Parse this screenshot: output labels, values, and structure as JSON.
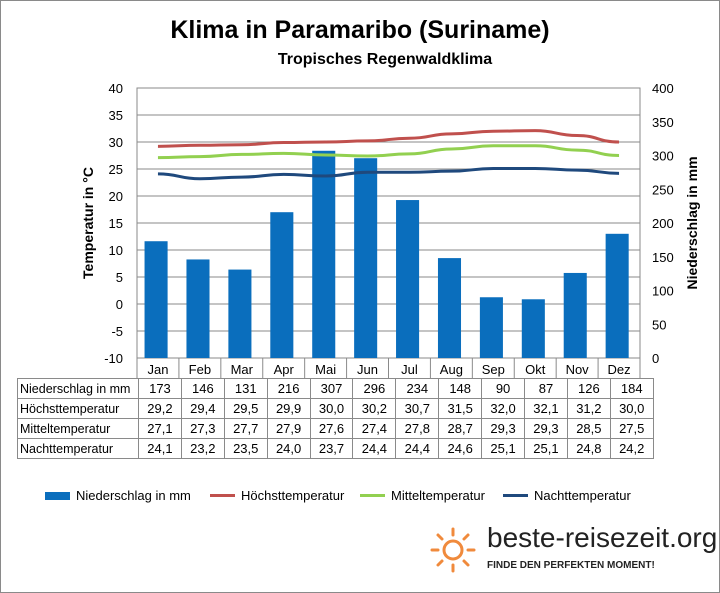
{
  "title": "Klima in Paramaribo (Suriname)",
  "subtitle": "Tropisches Regenwaldklima",
  "logo": {
    "text": "beste-reisezeit.org",
    "tagline": "FINDE DEN PERFEKTEN MOMENT!"
  },
  "chart_data": {
    "type": "bar+line",
    "title": "Klima in Paramaribo (Suriname)",
    "subtitle": "Tropisches Regenwaldklima",
    "ylabel": "Temperatur in °C",
    "y2label": "Niederschlag in mm",
    "ylim": [
      -10,
      40
    ],
    "y2lim": [
      0,
      400
    ],
    "yticks": [
      -10,
      -5,
      0,
      5,
      10,
      15,
      20,
      25,
      30,
      35,
      40
    ],
    "y2ticks": [
      0,
      50,
      100,
      150,
      200,
      250,
      300,
      350,
      400
    ],
    "grid": true,
    "legend_position": "bottom",
    "categories": [
      "Jan",
      "Feb",
      "Mar",
      "Apr",
      "Mai",
      "Jun",
      "Jul",
      "Aug",
      "Sep",
      "Okt",
      "Nov",
      "Dez"
    ],
    "series": [
      {
        "name": "Niederschlag in mm",
        "type": "bar",
        "axis": "right",
        "color": "#0a6ebd",
        "values": [
          173,
          146,
          131,
          216,
          307,
          296,
          234,
          148,
          90,
          87,
          126,
          184
        ],
        "display": [
          "173",
          "146",
          "131",
          "216",
          "307",
          "296",
          "234",
          "148",
          "90",
          "87",
          "126",
          "184"
        ]
      },
      {
        "name": "Höchsttemperatur",
        "type": "line",
        "axis": "left",
        "color": "#c0504d",
        "values": [
          29.2,
          29.4,
          29.5,
          29.9,
          30.0,
          30.2,
          30.7,
          31.5,
          32.0,
          32.1,
          31.2,
          30.0
        ],
        "display": [
          "29,2",
          "29,4",
          "29,5",
          "29,9",
          "30,0",
          "30,2",
          "30,7",
          "31,5",
          "32,0",
          "32,1",
          "31,2",
          "30,0"
        ]
      },
      {
        "name": "Mitteltemperatur",
        "type": "line",
        "axis": "left",
        "color": "#92d050",
        "values": [
          27.1,
          27.3,
          27.7,
          27.9,
          27.6,
          27.4,
          27.8,
          28.7,
          29.3,
          29.3,
          28.5,
          27.5
        ],
        "display": [
          "27,1",
          "27,3",
          "27,7",
          "27,9",
          "27,6",
          "27,4",
          "27,8",
          "28,7",
          "29,3",
          "29,3",
          "28,5",
          "27,5"
        ]
      },
      {
        "name": "Nachttemperatur",
        "type": "line",
        "axis": "left",
        "color": "#1f497d",
        "values": [
          24.1,
          23.2,
          23.5,
          24.0,
          23.7,
          24.4,
          24.4,
          24.6,
          25.1,
          25.1,
          24.8,
          24.2
        ],
        "display": [
          "24,1",
          "23,2",
          "23,5",
          "24,0",
          "23,7",
          "24,4",
          "24,4",
          "24,6",
          "25,1",
          "25,1",
          "24,8",
          "24,2"
        ]
      }
    ]
  }
}
